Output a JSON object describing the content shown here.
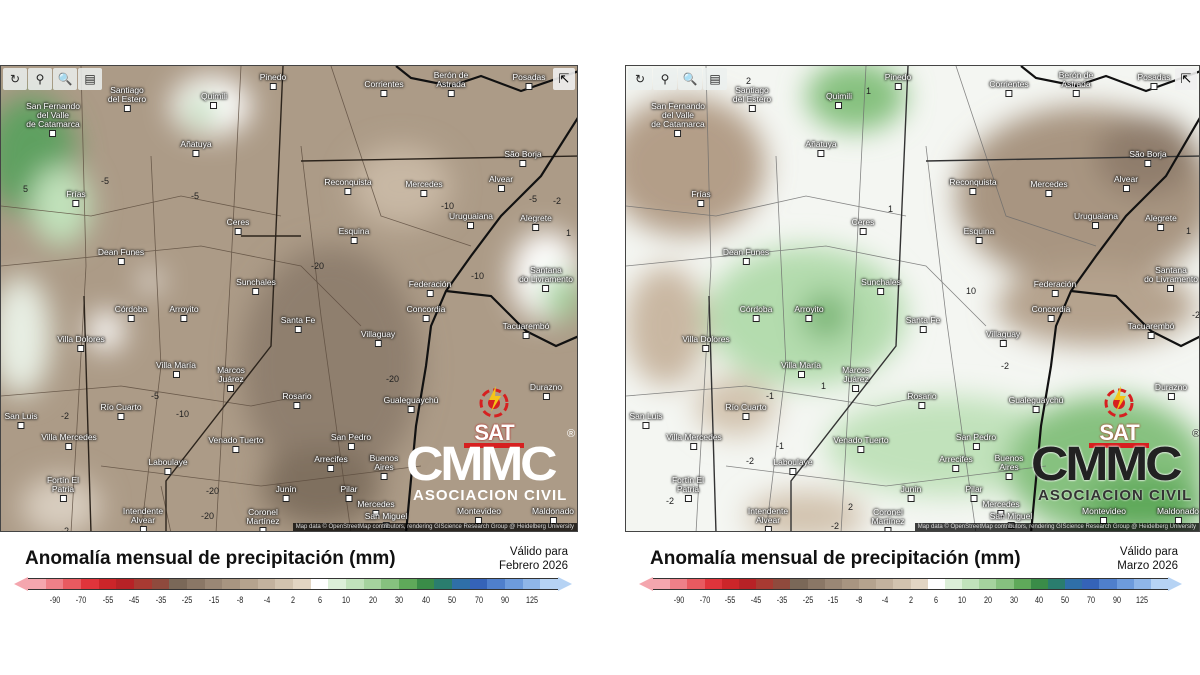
{
  "toolbar": {
    "buttons": [
      {
        "icon": "refresh-icon",
        "glyph": "↻"
      },
      {
        "icon": "map-pin-icon",
        "glyph": "⚲"
      },
      {
        "icon": "zoom-icon",
        "glyph": "🔍"
      },
      {
        "icon": "city-labels-icon",
        "glyph": "▤"
      }
    ],
    "share_icon": "share-icon",
    "share_glyph": "⇱"
  },
  "attribution": "Map data © OpenStreetMap contributors, rendering GIScience Research Group @ Heidelberg University",
  "logos": {
    "sat": "SAT",
    "cmmc": "CMMC",
    "civil": "ASOCIACION CIVIL",
    "registered": "®"
  },
  "cities": [
    "Pinedo",
    "Santiago\ndel Estero",
    "Quimili",
    "San Fernando\ndel Valle\nde Catamarca",
    "Añatuya",
    "Frías",
    "Ceres",
    "Dean Funes",
    "Sunchales",
    "Corrientes",
    "Berón de\nAstrada",
    "Posadas",
    "Reconquista",
    "Mercedes",
    "São Borja",
    "Alvear",
    "Uruguaiana",
    "Alegrete",
    "Esquina",
    "Federación",
    "Santana\ndo Livramento",
    "Córdoba",
    "Arroyito",
    "Santa Fe",
    "Concordia",
    "Tacuarembó",
    "Villa Dolores",
    "Villaguay",
    "Villa María",
    "Marcos\nJuárez",
    "Rosario",
    "Gualeguaychú",
    "Río Cuarto",
    "San Luis",
    "Villa Mercedes",
    "Venado Tuerto",
    "San Pedro",
    "Laboulaye",
    "Arrecifes",
    "Durazno",
    "Pilar",
    "Buenos\nAires",
    "Mercedes",
    "Junín",
    "Fortín El\nPatria",
    "Intendente\nAlvear",
    "Coronel\nMartínez",
    "San Miguel",
    "Montevideo",
    "Maldonado"
  ],
  "maps": [
    {
      "period": "Febrero 2026",
      "contours": [
        "-5",
        "-5",
        "5",
        "-10",
        "-5",
        "-2",
        "1",
        "-20",
        "-10",
        "-20",
        "-2",
        "-5",
        "-10",
        "-20",
        "-20",
        "-2"
      ]
    },
    {
      "period": "Marzo 2026",
      "contours": [
        "2",
        "1",
        "1",
        "1",
        "-2",
        "-1",
        "1",
        "-2",
        "-1",
        "2",
        "-2",
        "-2",
        "10",
        "-2"
      ]
    }
  ],
  "legend": {
    "title": "Anomalía mensual de precipitación (mm)",
    "valid_label": "Válido para",
    "periods": [
      "Febrero 2026",
      "Marzo 2026"
    ],
    "ticks": [
      "-90",
      "-70",
      "-55",
      "-45",
      "-35",
      "-25",
      "-15",
      "-8",
      "-4",
      "2",
      "6",
      "10",
      "20",
      "30",
      "40",
      "50",
      "70",
      "90",
      "125"
    ],
    "colors": [
      "#f4a6ae",
      "#ee8088",
      "#e85a60",
      "#e0343b",
      "#cc2529",
      "#b72226",
      "#a83a32",
      "#8f4a3d",
      "#7a6858",
      "#8a7766",
      "#9a8775",
      "#a89581",
      "#b5a38e",
      "#c3b29e",
      "#d2c3af",
      "#e2d5c3",
      "#ffffff",
      "#dcefd8",
      "#c1e2bb",
      "#a5d39e",
      "#86c17f",
      "#5fa95a",
      "#3a8c48",
      "#2a7d6e",
      "#2f6fa8",
      "#3563b8",
      "#4f7fcc",
      "#6d9bdc",
      "#8fb6e8",
      "#b6d3f4"
    ]
  }
}
